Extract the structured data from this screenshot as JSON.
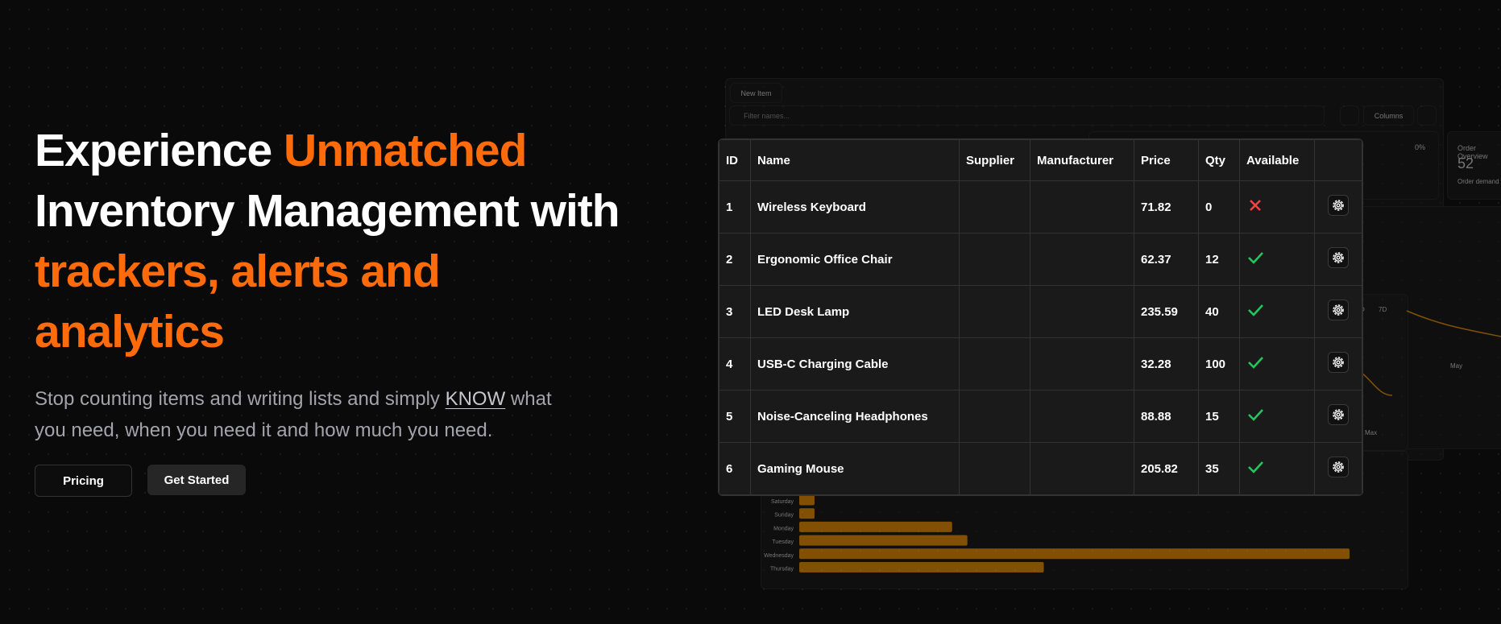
{
  "hero": {
    "title": [
      "Experience",
      "Unmatched",
      "Inventory Management with",
      "trackers, alerts and",
      "analytics"
    ],
    "subtitle": [
      "Stop counting items and writing lists and simply",
      "KNOW",
      "what",
      "you need, when you need it and how much you need."
    ],
    "buttons": [
      "Pricing",
      "Get Started"
    ]
  },
  "app": {
    "new_item": "New Item",
    "filter_placeholder": "Filter names...",
    "columns_button": "Columns",
    "stat_change": "0%",
    "order_overview": {
      "title": "Order Overview",
      "value": "52",
      "caption": "Order demand"
    },
    "range_tabs": [
      "D",
      "7D"
    ],
    "line_chart_labels": [
      "May",
      "Max"
    ]
  },
  "weekly_chart": {
    "type": "bar",
    "categories": [
      "Saturday",
      "Sunday",
      "Monday",
      "Tuesday",
      "Wednesday",
      "Thursday"
    ],
    "values": [
      1,
      1,
      10,
      11,
      36,
      16
    ],
    "color": "#e38a00"
  },
  "table": {
    "headers": [
      "ID",
      "Name",
      "Supplier",
      "Manufacturer",
      "Price",
      "Qty",
      "Available"
    ],
    "rows": [
      {
        "id": "1",
        "name": "Wireless Keyboard",
        "price": "71.82",
        "qty": "0",
        "available": false
      },
      {
        "id": "2",
        "name": "Ergonomic Office Chair",
        "price": "62.37",
        "qty": "12",
        "available": true
      },
      {
        "id": "3",
        "name": "LED Desk Lamp",
        "price": "235.59",
        "qty": "40",
        "available": true
      },
      {
        "id": "4",
        "name": "USB-C Charging Cable",
        "price": "32.28",
        "qty": "100",
        "available": true
      },
      {
        "id": "5",
        "name": "Noise-Canceling Headphones",
        "price": "88.88",
        "qty": "15",
        "available": true
      },
      {
        "id": "6",
        "name": "Gaming Mouse",
        "price": "205.82",
        "qty": "35",
        "available": true
      }
    ]
  }
}
